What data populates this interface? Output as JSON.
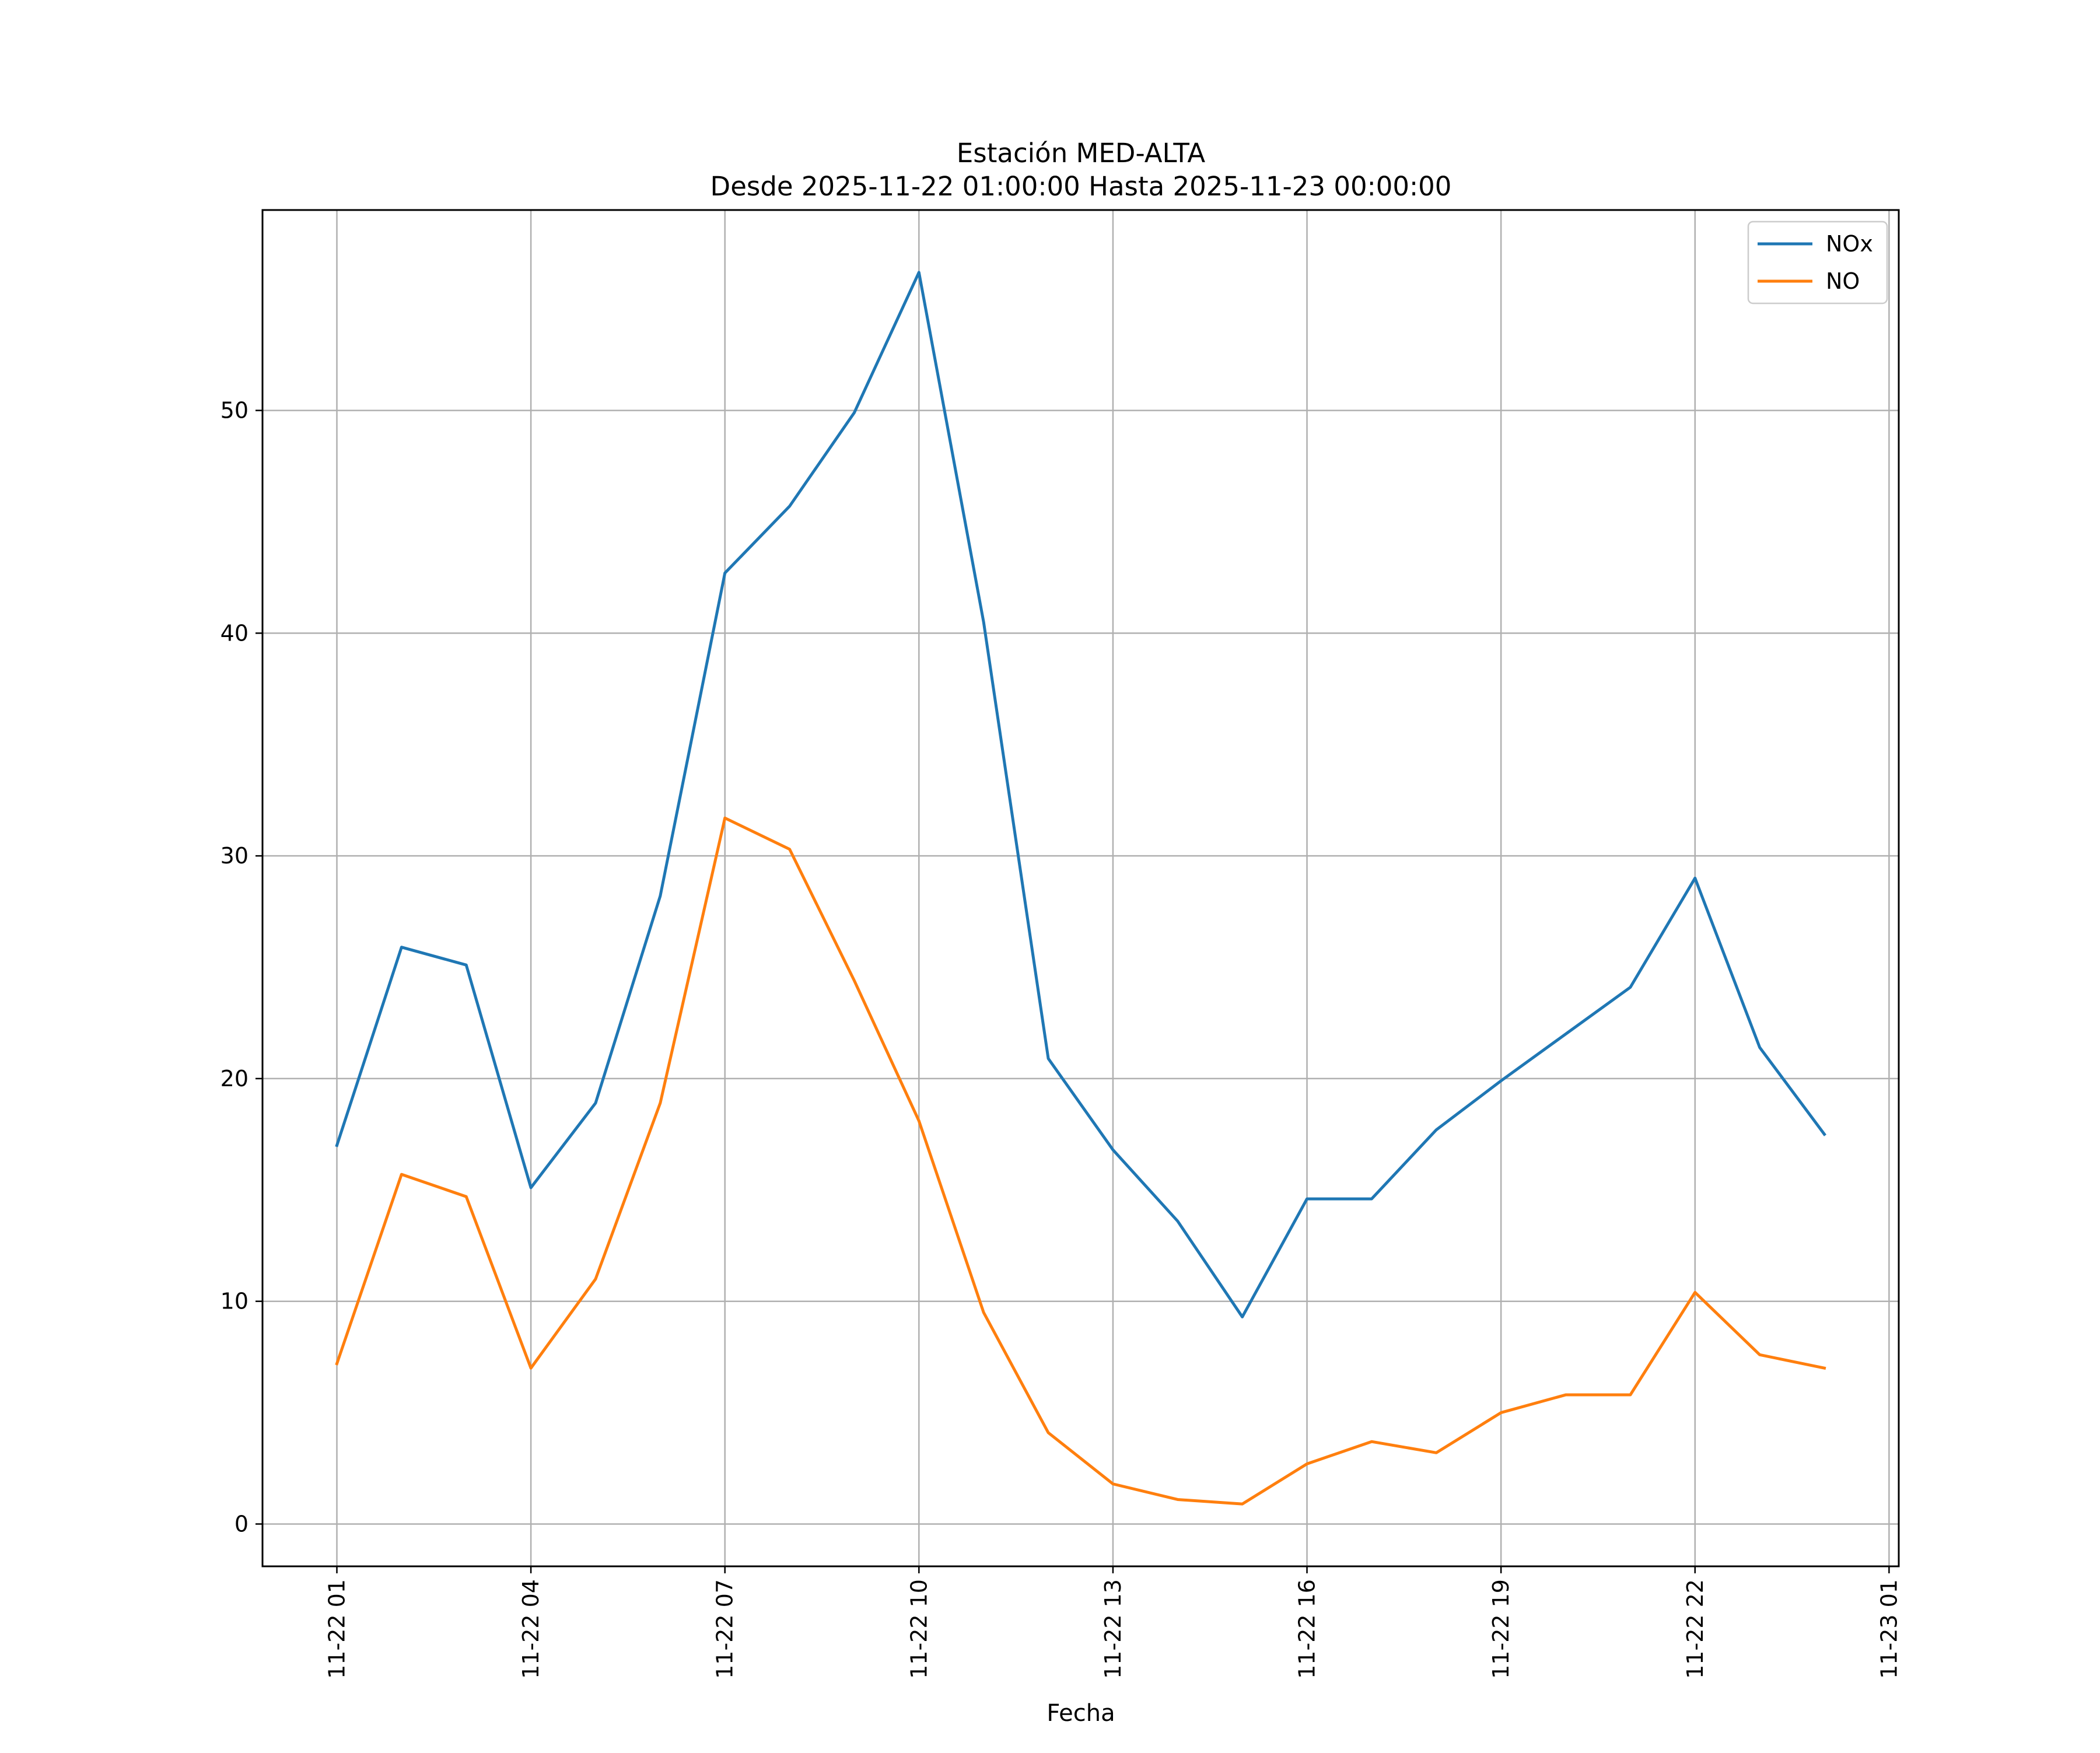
{
  "chart_data": {
    "type": "line",
    "title": "Estación MED-ALTA",
    "subtitle": "Desde 2025-11-22 01:00:00 Hasta 2025-11-23 00:00:00",
    "xlabel": "Fecha",
    "ylabel": "",
    "grid": true,
    "legend_position": "top-right",
    "x_unit": "hours since 2025-11-22 00:00",
    "x": [
      1,
      2,
      3,
      4,
      5,
      6,
      7,
      8,
      9,
      10,
      11,
      12,
      13,
      14,
      15,
      16,
      17,
      18,
      19,
      20,
      21,
      22,
      23,
      24
    ],
    "xlim": [
      -0.15,
      25.15
    ],
    "ylim": [
      -1.9,
      59
    ],
    "x_ticks": [
      {
        "value": 1,
        "label": "11-22 01"
      },
      {
        "value": 4,
        "label": "11-22 04"
      },
      {
        "value": 7,
        "label": "11-22 07"
      },
      {
        "value": 10,
        "label": "11-22 10"
      },
      {
        "value": 13,
        "label": "11-22 13"
      },
      {
        "value": 16,
        "label": "11-22 16"
      },
      {
        "value": 19,
        "label": "11-22 19"
      },
      {
        "value": 22,
        "label": "11-22 22"
      },
      {
        "value": 25,
        "label": "11-23 01"
      }
    ],
    "y_ticks": [
      {
        "value": 0,
        "label": "0"
      },
      {
        "value": 10,
        "label": "10"
      },
      {
        "value": 20,
        "label": "20"
      },
      {
        "value": 30,
        "label": "30"
      },
      {
        "value": 40,
        "label": "40"
      },
      {
        "value": 50,
        "label": "50"
      }
    ],
    "series": [
      {
        "name": "NOx",
        "color": "#1f77b4",
        "values": [
          17.0,
          25.9,
          25.1,
          15.1,
          18.9,
          28.2,
          42.7,
          45.7,
          49.9,
          56.2,
          40.5,
          20.9,
          16.8,
          13.6,
          9.3,
          14.6,
          14.6,
          17.7,
          19.9,
          22.0,
          24.1,
          29.0,
          21.4,
          17.5
        ]
      },
      {
        "name": "NO",
        "color": "#ff7f0e",
        "values": [
          7.2,
          15.7,
          14.7,
          7.0,
          11.0,
          18.9,
          31.7,
          30.3,
          24.4,
          18.1,
          9.5,
          4.1,
          1.8,
          1.1,
          0.9,
          2.7,
          3.7,
          3.2,
          5.0,
          5.8,
          5.8,
          10.4,
          7.6,
          7.0
        ]
      }
    ]
  }
}
